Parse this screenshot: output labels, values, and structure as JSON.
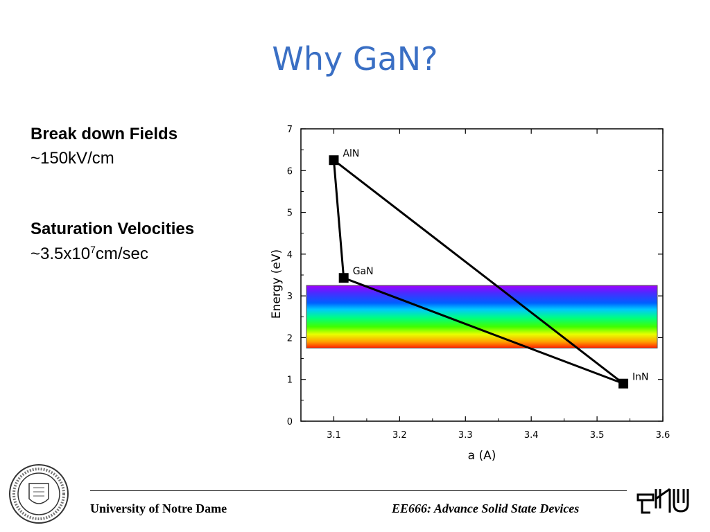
{
  "slide": {
    "title": "Why GaN?",
    "stats": [
      {
        "heading": "Break down Fields",
        "value": "~150kV/cm"
      },
      {
        "heading": "Saturation Velocities",
        "value_base": "~3.5x10",
        "value_exp": "7",
        "value_unit": "cm/sec"
      }
    ]
  },
  "footer": {
    "left": "University of Notre Dame",
    "right": "EE666: Advance Solid State Devices"
  },
  "chart_data": {
    "type": "scatter",
    "xlabel": "a (A)",
    "ylabel": "Energy (eV)",
    "xlim": [
      3.05,
      3.6
    ],
    "ylim": [
      0,
      7
    ],
    "xticks": [
      3.1,
      3.2,
      3.3,
      3.4,
      3.5,
      3.6
    ],
    "yticks": [
      0,
      1,
      2,
      3,
      4,
      5,
      6,
      7
    ],
    "points": [
      {
        "label": "AlN",
        "x": 3.1,
        "y": 6.25
      },
      {
        "label": "GaN",
        "x": 3.115,
        "y": 3.43
      },
      {
        "label": "InN",
        "x": 3.54,
        "y": 0.9
      }
    ],
    "lines": [
      [
        "AlN",
        "GaN"
      ],
      [
        "GaN",
        "InN"
      ],
      [
        "AlN",
        "InN"
      ]
    ],
    "visible_band": {
      "ymin": 1.75,
      "ymax": 3.25
    }
  }
}
